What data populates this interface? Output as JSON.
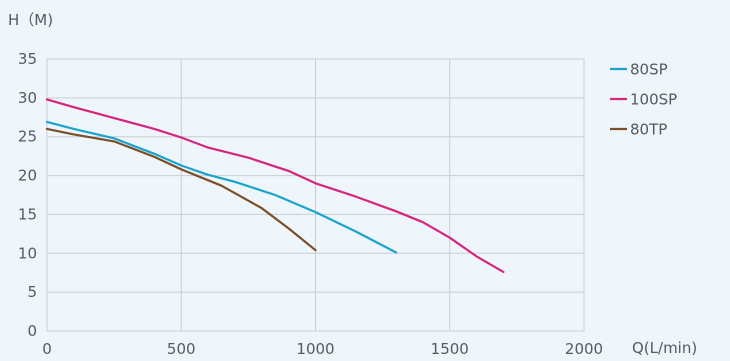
{
  "chart_data": {
    "type": "line",
    "ylabel": "H（M)",
    "xlabel": "Q(L/min)",
    "xlim": [
      0,
      2000
    ],
    "ylim": [
      0,
      35
    ],
    "xticks": [
      0,
      500,
      1000,
      1500,
      2000
    ],
    "yticks": [
      0,
      5,
      10,
      15,
      20,
      25,
      30,
      35
    ],
    "grid": true,
    "legend_position": "right",
    "series": [
      {
        "name": "80SP",
        "color": "#1aa3cc",
        "x": [
          0,
          100,
          250,
          400,
          500,
          600,
          700,
          850,
          1000,
          1150,
          1300
        ],
        "y": [
          26.9,
          26.0,
          24.8,
          22.8,
          21.3,
          20.1,
          19.2,
          17.5,
          15.3,
          12.8,
          10.1
        ]
      },
      {
        "name": "100SP",
        "color": "#d6257d",
        "x": [
          0,
          100,
          250,
          400,
          500,
          600,
          750,
          900,
          1000,
          1150,
          1300,
          1400,
          1500,
          1600,
          1700
        ],
        "y": [
          29.8,
          28.8,
          27.4,
          26.0,
          24.9,
          23.6,
          22.3,
          20.6,
          19.0,
          17.3,
          15.4,
          14.0,
          12.0,
          9.6,
          7.6
        ]
      },
      {
        "name": "80TP",
        "color": "#7a4f28",
        "x": [
          0,
          100,
          250,
          400,
          500,
          650,
          800,
          900,
          1000
        ],
        "y": [
          26.0,
          25.3,
          24.4,
          22.4,
          20.8,
          18.7,
          15.8,
          13.2,
          10.4
        ]
      }
    ]
  }
}
